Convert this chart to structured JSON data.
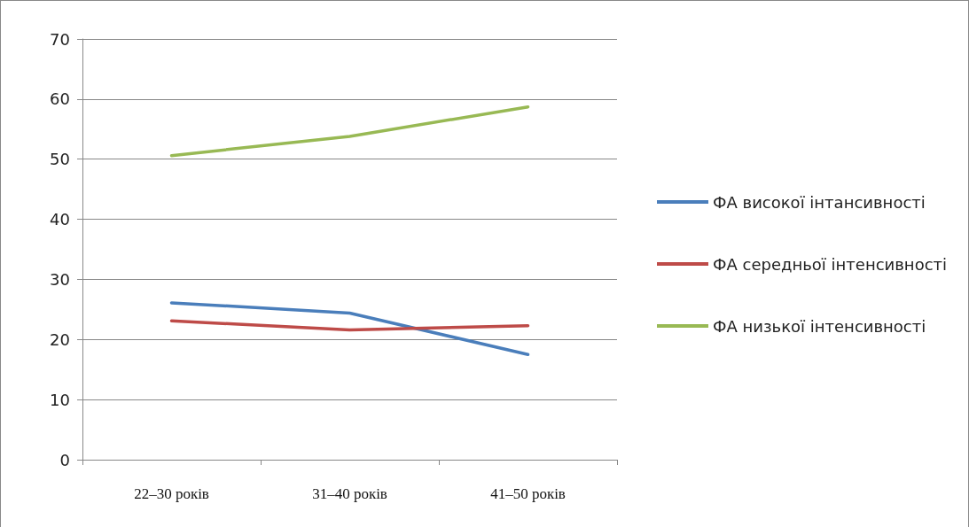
{
  "chart_data": {
    "type": "line",
    "categories": [
      "22–30 років",
      "31–40 років",
      "41–50 років"
    ],
    "series": [
      {
        "name": "ФА високої інтансивності",
        "color": "#4a7ebb",
        "values": [
          26.1,
          24.4,
          17.5
        ]
      },
      {
        "name": "ФА середньої інтенсивності",
        "color": "#be4b48",
        "values": [
          23.1,
          21.6,
          22.3
        ]
      },
      {
        "name": "ФА низької інтенсивності",
        "color": "#98b954",
        "values": [
          50.6,
          53.8,
          58.7
        ]
      }
    ],
    "ylim": [
      0,
      70
    ],
    "yticks": [
      0,
      10,
      20,
      30,
      40,
      50,
      60,
      70
    ],
    "grid": "y",
    "legend": "right",
    "marker": "none",
    "line_style": "solid"
  }
}
